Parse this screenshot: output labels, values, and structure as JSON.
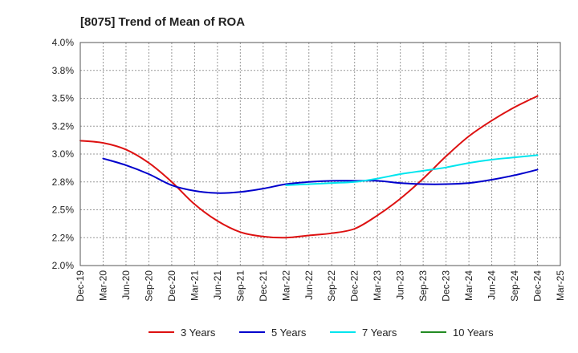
{
  "chart_data": {
    "type": "line",
    "title": "[8075]  Trend of Mean of ROA",
    "xlabel": "",
    "ylabel": "",
    "x_categories": [
      "Dec-19",
      "Mar-20",
      "Jun-20",
      "Sep-20",
      "Dec-20",
      "Mar-21",
      "Jun-21",
      "Sep-21",
      "Dec-21",
      "Mar-22",
      "Jun-22",
      "Sep-22",
      "Dec-22",
      "Mar-23",
      "Jun-23",
      "Sep-23",
      "Dec-23",
      "Mar-24",
      "Jun-24",
      "Sep-24",
      "Dec-24",
      "Mar-25"
    ],
    "y_ticks": [
      2.0,
      2.25,
      2.5,
      2.75,
      3.0,
      3.25,
      3.5,
      3.75,
      4.0
    ],
    "y_tick_labels": [
      "2.0%",
      "2.2%",
      "2.5%",
      "2.8%",
      "3.0%",
      "3.2%",
      "3.5%",
      "3.8%",
      "4.0%"
    ],
    "ylim": [
      2.0,
      4.0
    ],
    "grid": true,
    "legend_position": "bottom",
    "series": [
      {
        "name": "3 Years",
        "color": "#dd1111",
        "values": [
          3.12,
          3.1,
          3.04,
          2.92,
          2.75,
          2.55,
          2.4,
          2.3,
          2.26,
          2.25,
          2.27,
          2.29,
          2.33,
          2.45,
          2.6,
          2.78,
          2.98,
          3.16,
          3.3,
          3.42,
          3.52,
          null
        ]
      },
      {
        "name": "5 Years",
        "color": "#0000cc",
        "values": [
          null,
          2.96,
          2.9,
          2.82,
          2.72,
          2.67,
          2.65,
          2.66,
          2.69,
          2.73,
          2.75,
          2.76,
          2.76,
          2.76,
          2.74,
          2.73,
          2.73,
          2.74,
          2.77,
          2.81,
          2.86,
          null
        ]
      },
      {
        "name": "7 Years",
        "color": "#00e5ee",
        "values": [
          null,
          null,
          null,
          null,
          null,
          null,
          null,
          null,
          null,
          2.72,
          2.73,
          2.74,
          2.75,
          2.78,
          2.82,
          2.85,
          2.88,
          2.92,
          2.95,
          2.97,
          2.99,
          null
        ]
      },
      {
        "name": "10 Years",
        "color": "#228B22",
        "values": [
          null,
          null,
          null,
          null,
          null,
          null,
          null,
          null,
          null,
          null,
          null,
          null,
          null,
          null,
          null,
          null,
          null,
          null,
          null,
          null,
          null,
          null
        ]
      }
    ]
  }
}
